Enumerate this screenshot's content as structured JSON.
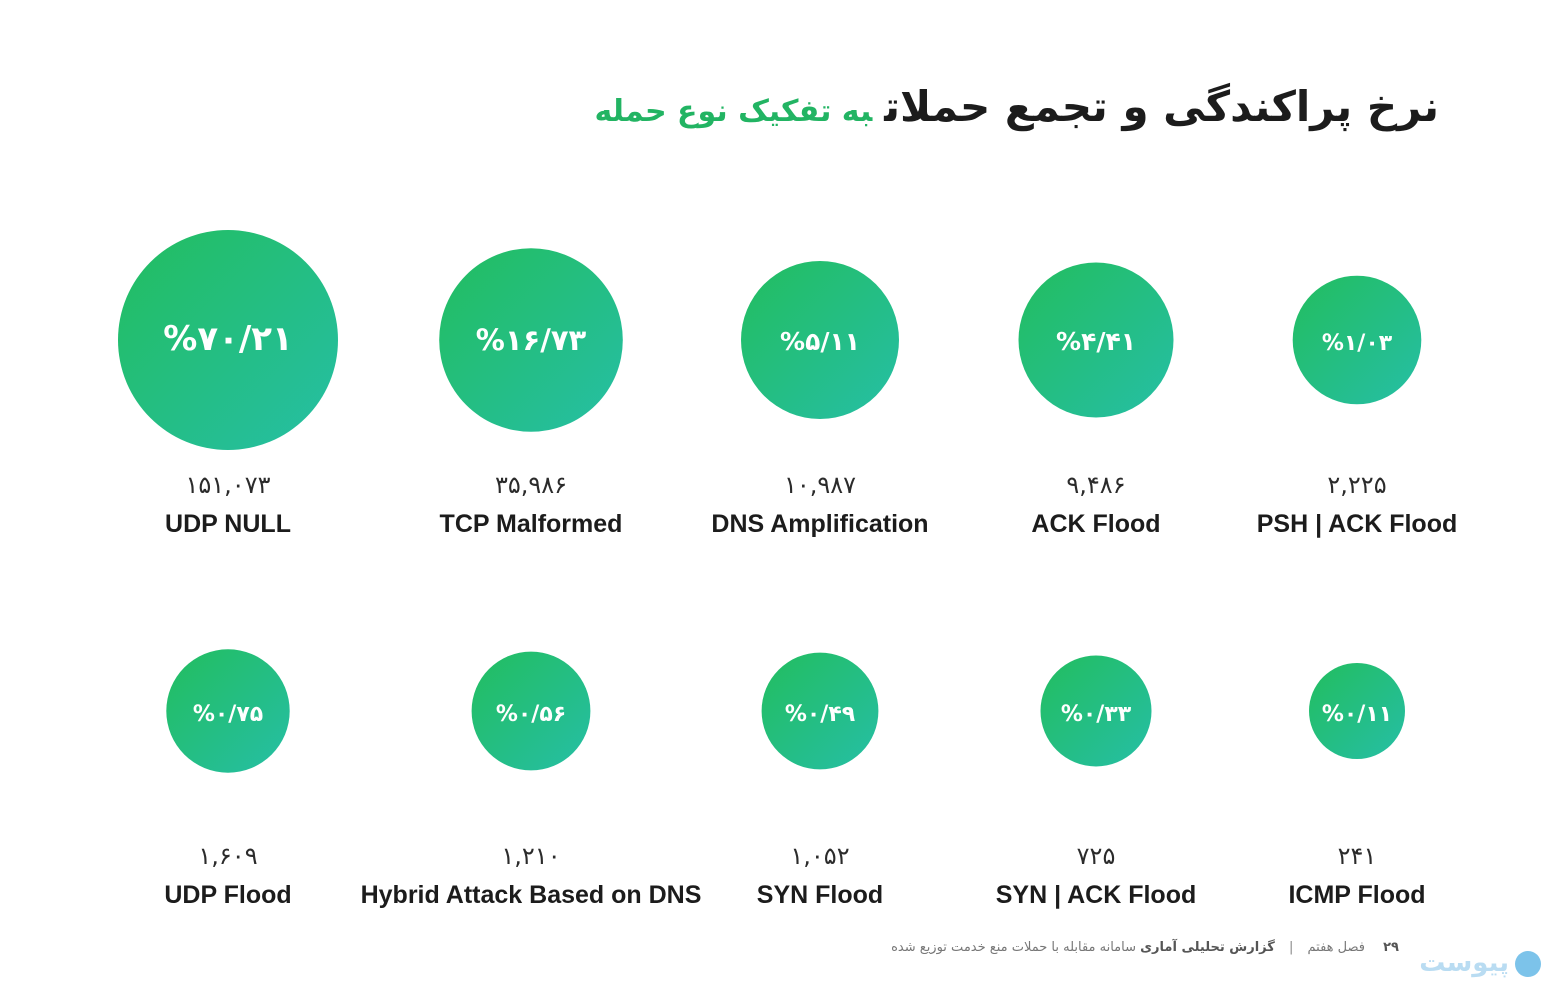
{
  "header": {
    "title": "نرخ پراکندگی و تجمع حملات",
    "title_accent": "به تفکیک نوع حمله"
  },
  "colors": {
    "bubble_gradient_start": "#22bd5e",
    "bubble_gradient_end": "#26bfa6",
    "accent": "#22b463"
  },
  "chart_data": {
    "type": "bubble",
    "title": "",
    "items": [
      {
        "name": "UDP NULL",
        "percent": 70.21,
        "percent_label": "%۷۰/۲۱",
        "count": 151073,
        "count_label": "۱۵۱,۰۷۳"
      },
      {
        "name": "TCP Malformed",
        "percent": 16.73,
        "percent_label": "%۱۶/۷۳",
        "count": 35986,
        "count_label": "۳۵,۹۸۶"
      },
      {
        "name": "DNS Amplification",
        "percent": 5.11,
        "percent_label": "%۵/۱۱",
        "count": 10987,
        "count_label": "۱۰,۹۸۷"
      },
      {
        "name": "ACK Flood",
        "percent": 4.41,
        "percent_label": "%۴/۴۱",
        "count": 9486,
        "count_label": "۹,۴۸۶"
      },
      {
        "name": "PSH | ACK Flood",
        "percent": 1.03,
        "percent_label": "%۱/۰۳",
        "count": 2225,
        "count_label": "۲,۲۲۵"
      },
      {
        "name": "UDP Flood",
        "percent": 0.75,
        "percent_label": "%۰/۷۵",
        "count": 1609,
        "count_label": "۱,۶۰۹"
      },
      {
        "name": "Hybrid Attack Based on DNS",
        "percent": 0.56,
        "percent_label": "%۰/۵۶",
        "count": 1210,
        "count_label": "۱,۲۱۰"
      },
      {
        "name": "SYN Flood",
        "percent": 0.49,
        "percent_label": "%۰/۴۹",
        "count": 1052,
        "count_label": "۱,۰۵۲"
      },
      {
        "name": "SYN | ACK Flood",
        "percent": 0.33,
        "percent_label": "%۰/۳۳",
        "count": 725,
        "count_label": "۷۲۵"
      },
      {
        "name": "ICMP Flood",
        "percent": 0.11,
        "percent_label": "%۰/۱۱",
        "count": 241,
        "count_label": "۲۴۱"
      }
    ]
  },
  "footer": {
    "page_number": "۲۹",
    "chapter": "فصل هفتم",
    "report_title": "گزارش تحلیلی آماری",
    "report_subtitle": "سامانه مقابله با حملات منع خدمت توزیع شده",
    "logo_text": "پیوست"
  }
}
